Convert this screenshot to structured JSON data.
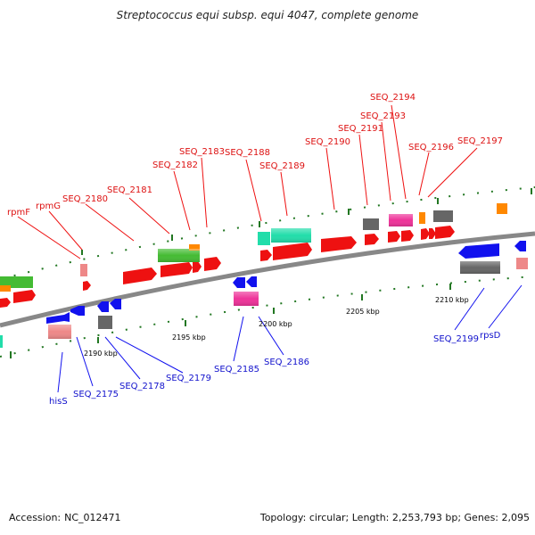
{
  "header": {
    "title": "Streptococcus equi subsp. equi 4047, complete genome"
  },
  "footer": {
    "accession_label": "Accession:",
    "accession_value": "NC_012471",
    "topology_text": "Topology: circular; Length: 2,253,793 bp; Genes: 2,095"
  },
  "colors": {
    "red": "#ee1111",
    "blue": "#1111ee",
    "green": "#44bb33",
    "teal": "#22ddaa",
    "pink": "#ee3399",
    "gray": "#666666",
    "salmon": "#ee8888",
    "orange": "#ff8800",
    "backbone": "#888888"
  },
  "genome_map": {
    "scale_labels": [
      "2190 kbp",
      "2195 kbp",
      "2200 kbp",
      "2205 kbp",
      "2210 kbp"
    ],
    "upper_labels": [
      "rpmF",
      "rpmG",
      "SEQ_2180",
      "SEQ_2181",
      "SEQ_2182",
      "SEQ_2183",
      "SEQ_2188",
      "SEQ_2189",
      "SEQ_2190",
      "SEQ_2191",
      "SEQ_2193",
      "SEQ_2194",
      "SEQ_2196",
      "SEQ_2197"
    ],
    "lower_labels": [
      "hisS",
      "SEQ_2175",
      "SEQ_2178",
      "SEQ_2179",
      "SEQ_2185",
      "SEQ_2186",
      "SEQ_2199",
      "rpsD"
    ]
  }
}
